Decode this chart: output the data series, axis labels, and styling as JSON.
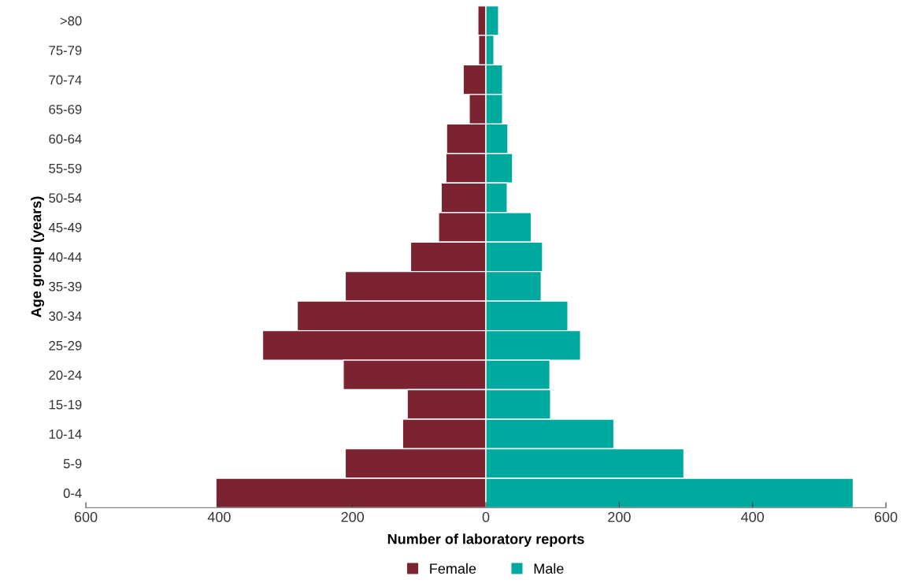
{
  "chart_data": {
    "type": "bar",
    "orientation": "horizontal",
    "stacked": true,
    "xlabel": "Number of laboratory reports",
    "ylabel": "Age group (years)",
    "categories": [
      ">80",
      "75-79",
      "70-74",
      "65-69",
      "60-64",
      "55-59",
      "50-54",
      "45-49",
      "40-44",
      "35-39",
      "30-34",
      "25-29",
      "20-24",
      "15-19",
      "10-14",
      "5-9",
      "0-4"
    ],
    "series": [
      {
        "name": "Female",
        "color": "#7b2331",
        "values": [
          -12,
          -11,
          -34,
          -25,
          -59,
          -60,
          -67,
          -71,
          -113,
          -211,
          -283,
          -335,
          -214,
          -118,
          -125,
          -211,
          -405
        ]
      },
      {
        "name": "Male",
        "color": "#00a99d",
        "values": [
          19,
          12,
          25,
          25,
          33,
          40,
          32,
          68,
          85,
          83,
          123,
          142,
          96,
          97,
          192,
          297,
          551
        ]
      }
    ],
    "xlim": [
      -600,
      600
    ],
    "xticks": [
      {
        "value": -600,
        "label": "600"
      },
      {
        "value": -400,
        "label": "400"
      },
      {
        "value": -200,
        "label": "200"
      },
      0,
      200,
      400,
      600
    ],
    "grid": false,
    "legend": "bottom"
  }
}
